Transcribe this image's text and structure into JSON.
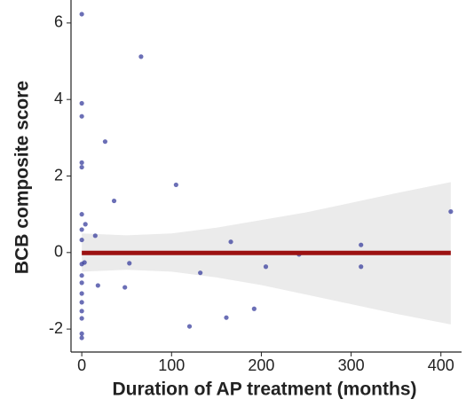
{
  "chart_data": {
    "type": "scatter",
    "x_label": "Duration of AP treatment (months)",
    "y_label": "BCB composite score",
    "xlim": [
      -12,
      423
    ],
    "ylim": [
      -2.6,
      6.6
    ],
    "xticks": [
      0,
      100,
      200,
      300,
      400
    ],
    "yticks": [
      -2,
      0,
      2,
      4,
      6
    ],
    "grid": false,
    "points": {
      "color": "#3a3f9e",
      "x": [
        0,
        66,
        0,
        0,
        26,
        0,
        0,
        105,
        36,
        0,
        4,
        0,
        15,
        0,
        166,
        411,
        311,
        311,
        242,
        205,
        3,
        53,
        18,
        48,
        132,
        0,
        0,
        0,
        0,
        0,
        0,
        0,
        0,
        192,
        161,
        120,
        0
      ],
      "y": [
        6.23,
        5.12,
        3.9,
        3.56,
        2.9,
        2.35,
        2.23,
        1.77,
        1.35,
        1.0,
        0.74,
        0.6,
        0.44,
        0.33,
        0.28,
        1.07,
        0.2,
        -0.37,
        -0.05,
        -0.37,
        -0.26,
        -0.28,
        -0.86,
        -0.91,
        -0.53,
        -0.6,
        -0.79,
        -1.07,
        -1.3,
        -1.53,
        -1.72,
        -2.12,
        -2.23,
        -1.47,
        -1.7,
        -1.93,
        -0.3
      ]
    },
    "fit": {
      "color": "#9b1111",
      "x": [
        0,
        411
      ],
      "y": [
        -0.01,
        -0.01
      ]
    },
    "band": {
      "color": "#ebebeb",
      "x": [
        0,
        50,
        100,
        150,
        200,
        250,
        300,
        350,
        411
      ],
      "upper": [
        0.5,
        0.45,
        0.5,
        0.65,
        0.85,
        1.05,
        1.3,
        1.55,
        1.84
      ],
      "lower": [
        -0.5,
        -0.45,
        -0.5,
        -0.65,
        -0.85,
        -1.1,
        -1.35,
        -1.6,
        -1.88
      ]
    }
  }
}
